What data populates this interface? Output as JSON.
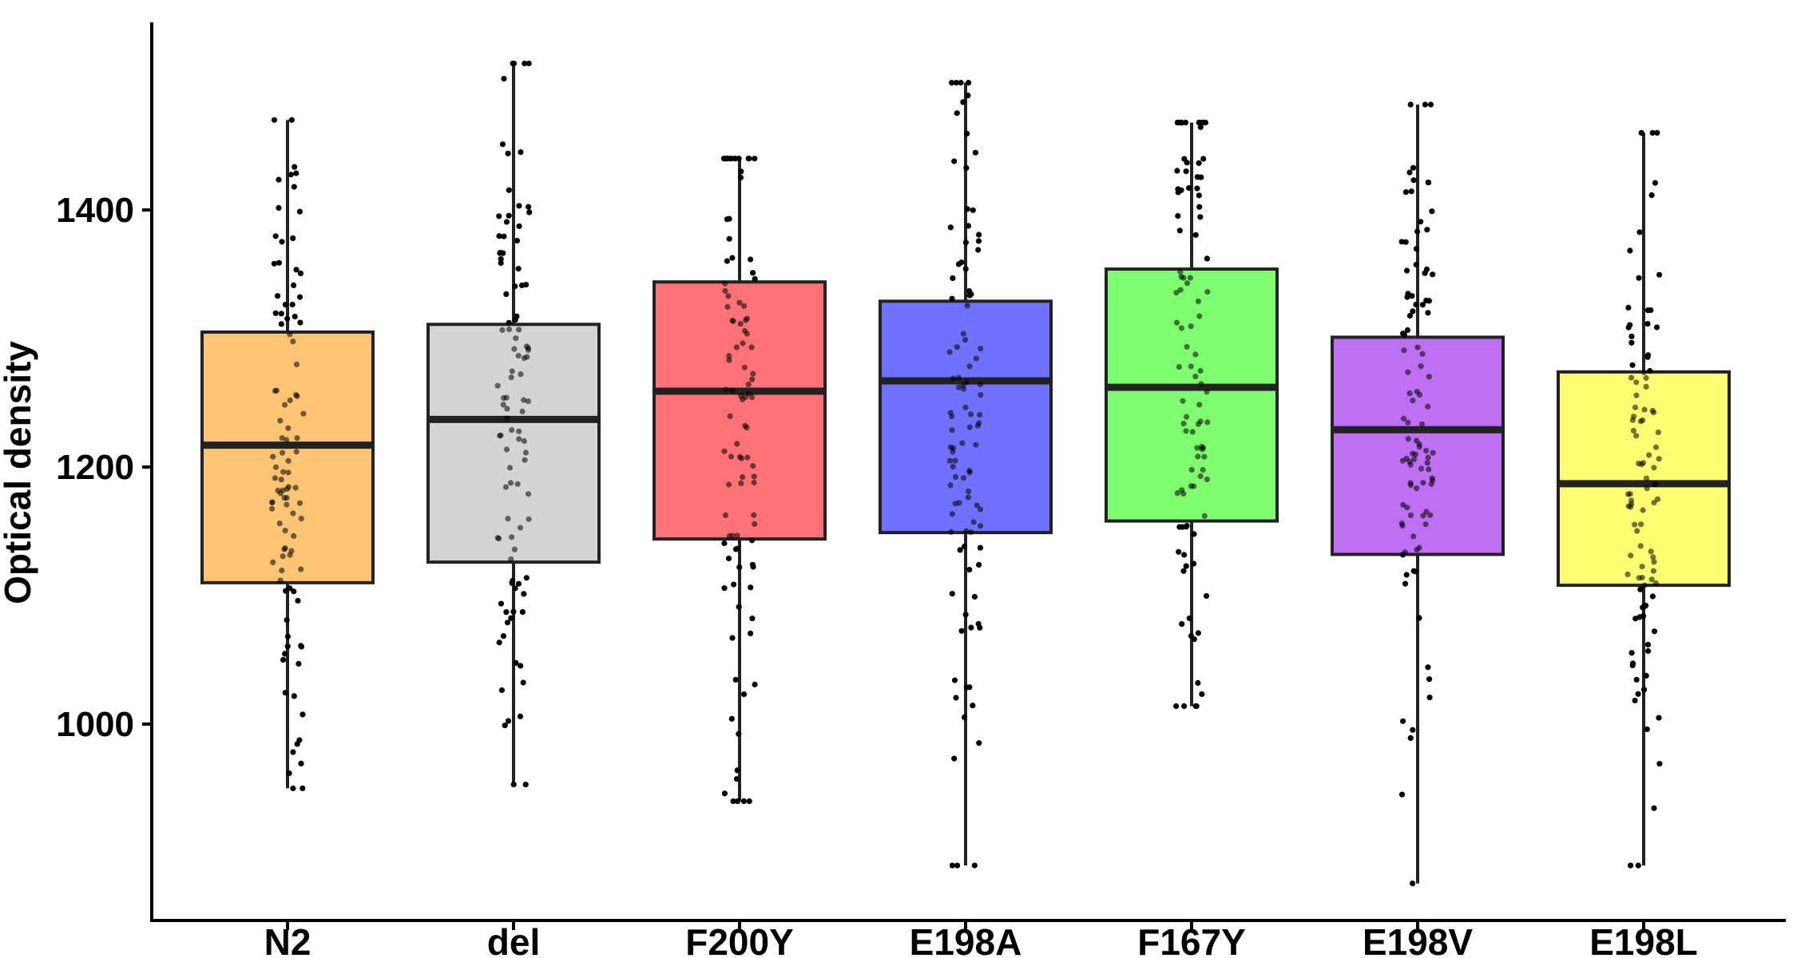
{
  "chart_data": {
    "type": "boxplot",
    "title": "",
    "xlabel": "",
    "ylabel": "Optical density",
    "ylim": [
      850,
      1550
    ],
    "yticks": [
      {
        "value": 1000,
        "label": "1000"
      },
      {
        "value": 1200,
        "label": "1200"
      },
      {
        "value": 1400,
        "label": "1400"
      }
    ],
    "grid": false,
    "legend": "none",
    "points_color": "#000000",
    "groups": [
      {
        "label": "N2",
        "color": "#fdc473",
        "q1": 1110,
        "median": 1217,
        "q3": 1305,
        "whisker_low": 950,
        "whisker_high": 1470
      },
      {
        "label": "del",
        "color": "#d4d4d4",
        "q1": 1126,
        "median": 1237,
        "q3": 1311,
        "whisker_low": 953,
        "whisker_high": 1514
      },
      {
        "label": "F200Y",
        "color": "#ff7276",
        "q1": 1144,
        "median": 1259,
        "q3": 1344,
        "whisker_low": 940,
        "whisker_high": 1440
      },
      {
        "label": "E198A",
        "color": "#7072fe",
        "q1": 1149,
        "median": 1267,
        "q3": 1329,
        "whisker_low": 890,
        "whisker_high": 1499
      },
      {
        "label": "F167Y",
        "color": "#80fe72",
        "q1": 1158,
        "median": 1262,
        "q3": 1354,
        "whisker_low": 1014,
        "whisker_high": 1468
      },
      {
        "label": "E198V",
        "color": "#bd70f4",
        "q1": 1132,
        "median": 1229,
        "q3": 1301,
        "whisker_low": 876,
        "whisker_high": 1482
      },
      {
        "label": "E198L",
        "color": "#ffff73",
        "q1": 1108,
        "median": 1187,
        "q3": 1274,
        "whisker_low": 890,
        "whisker_high": 1460
      }
    ]
  }
}
